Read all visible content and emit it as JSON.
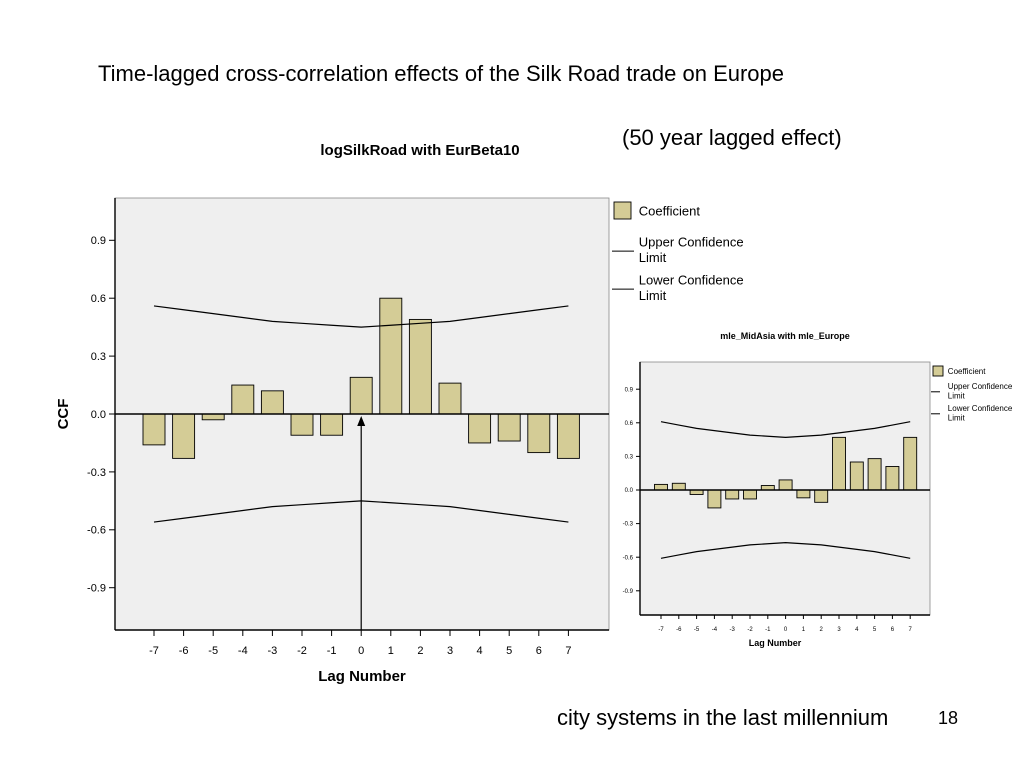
{
  "slide": {
    "title": "Time-lagged cross-correlation effects of the Silk Road trade on Europe",
    "subtitle": "(50 year lagged effect)",
    "footer": "city systems in the last millennium",
    "page_number": "18"
  },
  "colors": {
    "bar_fill": "#d4cc96",
    "plot_bg": "#efefef",
    "line": "#000000"
  },
  "chart_data": [
    {
      "type": "bar",
      "title": "logSilkRoad with EurBeta10",
      "xlabel": "Lag Number",
      "ylabel": "CCF",
      "categories": [
        "-7",
        "-6",
        "-5",
        "-4",
        "-3",
        "-2",
        "-1",
        "0",
        "1",
        "2",
        "3",
        "4",
        "5",
        "6",
        "7"
      ],
      "y_ticks": [
        "0.9",
        "0.6",
        "0.3",
        "0.0",
        "-0.3",
        "-0.6",
        "-0.9"
      ],
      "ylim": [
        -1.1,
        1.1
      ],
      "series": [
        {
          "name": "Coefficient",
          "values": [
            -0.16,
            -0.23,
            -0.03,
            0.15,
            0.12,
            -0.11,
            -0.11,
            0.19,
            0.6,
            0.49,
            0.16,
            -0.15,
            -0.14,
            -0.2,
            -0.23
          ]
        },
        {
          "name": "Upper Confidence Limit",
          "values": [
            0.56,
            0.54,
            0.52,
            0.5,
            0.48,
            0.47,
            0.46,
            0.45,
            0.46,
            0.47,
            0.48,
            0.5,
            0.52,
            0.54,
            0.56
          ]
        },
        {
          "name": "Lower Confidence Limit",
          "values": [
            -0.56,
            -0.54,
            -0.52,
            -0.5,
            -0.48,
            -0.47,
            -0.46,
            -0.45,
            -0.46,
            -0.47,
            -0.48,
            -0.5,
            -0.52,
            -0.54,
            -0.56
          ]
        }
      ],
      "legend_labels": [
        "Coefficient",
        "Upper Confidence Limit",
        "Lower Confidence Limit"
      ],
      "legend": "right",
      "grid": false
    },
    {
      "type": "bar",
      "title": "mle_MidAsia with mle_Europe",
      "xlabel": "Lag Number",
      "ylabel": "",
      "categories": [
        "-7",
        "-6",
        "-5",
        "-4",
        "-3",
        "-2",
        "-1",
        "0",
        "1",
        "2",
        "3",
        "4",
        "5",
        "6",
        "7"
      ],
      "y_ticks": [
        "0.9",
        "0.6",
        "0.3",
        "0.0",
        "-0.3",
        "-0.6",
        "-0.9"
      ],
      "ylim": [
        -1.1,
        1.1
      ],
      "series": [
        {
          "name": "Coefficient",
          "values": [
            0.05,
            0.06,
            -0.04,
            -0.16,
            -0.08,
            -0.08,
            0.04,
            0.09,
            -0.07,
            -0.11,
            0.47,
            0.25,
            0.28,
            0.21,
            0.47
          ]
        },
        {
          "name": "Upper Confidence Limit",
          "values": [
            0.61,
            0.58,
            0.55,
            0.53,
            0.51,
            0.49,
            0.48,
            0.47,
            0.48,
            0.49,
            0.51,
            0.53,
            0.55,
            0.58,
            0.61
          ]
        },
        {
          "name": "Lower Confidence Limit",
          "values": [
            -0.61,
            -0.58,
            -0.55,
            -0.53,
            -0.51,
            -0.49,
            -0.48,
            -0.47,
            -0.48,
            -0.49,
            -0.51,
            -0.53,
            -0.55,
            -0.58,
            -0.61
          ]
        }
      ],
      "legend_labels": [
        "Coefficient",
        "Upper Confidence Limit",
        "Lower Confidence Limit"
      ],
      "legend": "right",
      "grid": false
    }
  ]
}
